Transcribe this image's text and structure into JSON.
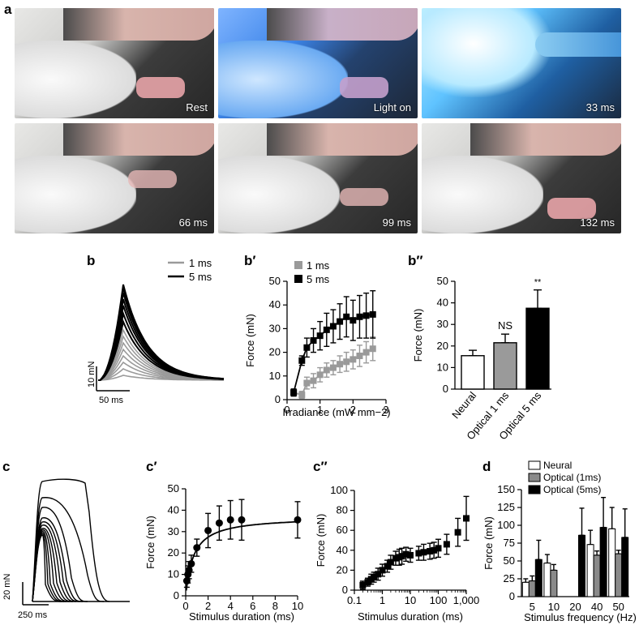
{
  "panel_a": {
    "label": "a",
    "frames": [
      "Rest",
      "Light on",
      "33 ms",
      "66 ms",
      "99 ms",
      "132 ms"
    ]
  },
  "panel_b": {
    "label": "b",
    "legend": [
      "1 ms",
      "5 ms"
    ],
    "scale_y": "10 mN",
    "scale_x": "50 ms",
    "colors": {
      "gray": "#9a9a9a",
      "black": "#000000"
    }
  },
  "panel_c": {
    "label": "c",
    "scale_y": "20 mN",
    "scale_x": "250 ms"
  },
  "labels": {
    "b1": "b′",
    "b2": "b″",
    "c1": "c′",
    "c2": "c″",
    "d": "d"
  },
  "chart_data": [
    {
      "id": "b_prime",
      "type": "line",
      "xlabel": "Irradiance (mW mm−2)",
      "ylabel": "Force (mN)",
      "xlim": [
        0,
        3
      ],
      "ylim": [
        0,
        50
      ],
      "xticks": [
        0,
        1,
        2,
        3
      ],
      "yticks": [
        0,
        10,
        20,
        30,
        40,
        50
      ],
      "legend_position": "top-left",
      "series": [
        {
          "name": "1 ms",
          "color": "#9a9a9a",
          "x": [
            0.2,
            0.45,
            0.6,
            0.8,
            1.0,
            1.2,
            1.4,
            1.6,
            1.8,
            2.0,
            2.2,
            2.4,
            2.6
          ],
          "y": [
            3,
            2,
            7,
            8,
            10.5,
            12.5,
            13.5,
            15,
            16,
            17,
            18.5,
            20,
            21.5
          ],
          "err": [
            1.5,
            1.5,
            2.5,
            3,
            3,
            3,
            3,
            3.5,
            4,
            4,
            4.5,
            4.5,
            5
          ]
        },
        {
          "name": "5 ms",
          "color": "#000000",
          "x": [
            0.2,
            0.45,
            0.6,
            0.8,
            1.0,
            1.2,
            1.4,
            1.6,
            1.8,
            2.0,
            2.2,
            2.4,
            2.6
          ],
          "y": [
            3,
            16.5,
            22,
            25,
            27,
            29.5,
            31,
            33,
            35,
            33.5,
            35,
            35.5,
            36
          ],
          "err": [
            1.5,
            2,
            4,
            5,
            6,
            7,
            7,
            7.5,
            8.5,
            8.5,
            9,
            9.5,
            10
          ]
        }
      ]
    },
    {
      "id": "b_double_prime",
      "type": "bar",
      "ylabel": "Force (mN)",
      "ylim": [
        0,
        50
      ],
      "yticks": [
        0,
        10,
        20,
        30,
        40,
        50
      ],
      "categories": [
        "Neural",
        "Optical 1 ms",
        "Optical 5 ms"
      ],
      "values": [
        15.5,
        21.5,
        37.5
      ],
      "err": [
        2.5,
        4,
        8.5
      ],
      "colors": [
        "#ffffff",
        "#9a9a9a",
        "#000000"
      ],
      "annotations": [
        "",
        "NS",
        "**"
      ]
    },
    {
      "id": "c_prime",
      "type": "line",
      "xlabel": "Stimulus duration (ms)",
      "ylabel": "Force (mN)",
      "xlim": [
        0,
        10
      ],
      "ylim": [
        0,
        50
      ],
      "xticks": [
        0,
        2,
        4,
        6,
        8,
        10
      ],
      "yticks": [
        0,
        10,
        20,
        30,
        40,
        50
      ],
      "series": [
        {
          "x": [
            0.1,
            0.2,
            0.3,
            0.5,
            1.0,
            2.0,
            3.0,
            4.0,
            5.0,
            10.0
          ],
          "y": [
            7,
            10,
            12,
            15,
            22.5,
            30.5,
            34,
            35.5,
            35.5,
            35.5
          ],
          "err": [
            3,
            4,
            4,
            4,
            4,
            8,
            8,
            9,
            9.5,
            8.5
          ]
        }
      ]
    },
    {
      "id": "c_double_prime",
      "type": "scatter",
      "xlabel": "Stimulus duration (ms)",
      "ylabel": "Force (mN)",
      "xscale": "log",
      "xlim": [
        0.1,
        1000
      ],
      "ylim": [
        0,
        100
      ],
      "xtick_labels": [
        "0.1",
        "1",
        "10",
        "100",
        "1,000"
      ],
      "yticks": [
        0,
        20,
        40,
        60,
        80,
        100
      ],
      "series": [
        {
          "x": [
            0.2,
            0.3,
            0.4,
            0.5,
            0.7,
            1,
            1.5,
            2,
            3,
            4,
            5,
            7,
            10,
            20,
            30,
            50,
            70,
            100,
            200,
            500,
            1000
          ],
          "y": [
            5,
            8,
            11,
            13,
            16,
            20,
            24,
            28,
            32,
            33,
            34,
            36,
            35,
            37,
            38,
            39,
            40,
            42,
            46,
            58,
            72
          ],
          "err": [
            4,
            4,
            5,
            5,
            6,
            6,
            6,
            7,
            7,
            8,
            8,
            7,
            7,
            7,
            8,
            8,
            8,
            9,
            10,
            14,
            22
          ]
        }
      ]
    },
    {
      "id": "d",
      "type": "bar",
      "xlabel": "Stimulus frequency (Hz)",
      "ylabel": "Force (mN)",
      "ylim": [
        0,
        150
      ],
      "yticks": [
        0,
        25,
        50,
        75,
        100,
        125,
        150
      ],
      "categories": [
        "5",
        "10",
        "20",
        "40",
        "50"
      ],
      "legend_position": "top-left",
      "series": [
        {
          "name": "Neural",
          "color": "#ffffff",
          "values": [
            20,
            47,
            null,
            73,
            95
          ],
          "err": [
            5,
            12,
            null,
            20,
            30
          ]
        },
        {
          "name": "Optical (1ms)",
          "color": "#8a8a8a",
          "values": [
            22,
            37,
            null,
            58,
            60
          ],
          "err": [
            7,
            8,
            null,
            6,
            5
          ]
        },
        {
          "name": "Optical (5ms)",
          "color": "#000000",
          "values": [
            52,
            null,
            86,
            97,
            83
          ],
          "err": [
            27,
            null,
            38,
            42,
            40
          ]
        }
      ]
    }
  ]
}
